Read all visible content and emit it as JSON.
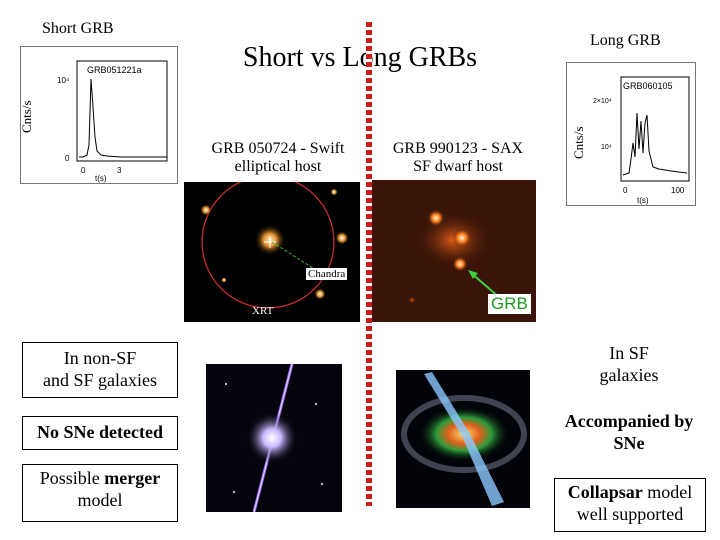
{
  "title": "Short vs Long GRBs",
  "short": {
    "heading": "Short GRB",
    "lightcurve": {
      "name": "GRB051221a",
      "ylabel": "Cnts/s",
      "xlabel": "t(s)",
      "ytick_top": "10⁴",
      "ytick_bottom": "0",
      "xtick_0": "0",
      "xtick_3": "3"
    },
    "image_caption_1": "GRB 050724 - Swift",
    "image_caption_2": "elliptical host",
    "label_chandra": "Chandra",
    "label_xrt": "XRT",
    "box1": "In non-SF\nand SF galaxies",
    "box2": "No SNe detected",
    "box3_a": "Possible",
    "box3_b": "merger",
    "box3_c": "model"
  },
  "long": {
    "heading": "Long GRB",
    "lightcurve": {
      "name": "GRB060105",
      "ylabel": "Cnts/s",
      "xlabel": "t(s)",
      "ytick_top": "2×10⁴",
      "ytick_mid": "10⁴",
      "ytick_bottom": "0",
      "xtick_0": "0",
      "xtick_100": "100"
    },
    "image_caption_1": "GRB 990123 - SAX",
    "image_caption_2": "SF dwarf host",
    "label_grb": "GRB",
    "box1": "In SF\ngalaxies",
    "box2_a": "Accompanied by",
    "box2_b": "SNe",
    "box3_a": "Collapsar",
    "box3_b": " model",
    "box3_c": "well supported"
  },
  "colors": {
    "divider": "#d11c1c",
    "grb_label": "#1f9b1f"
  }
}
